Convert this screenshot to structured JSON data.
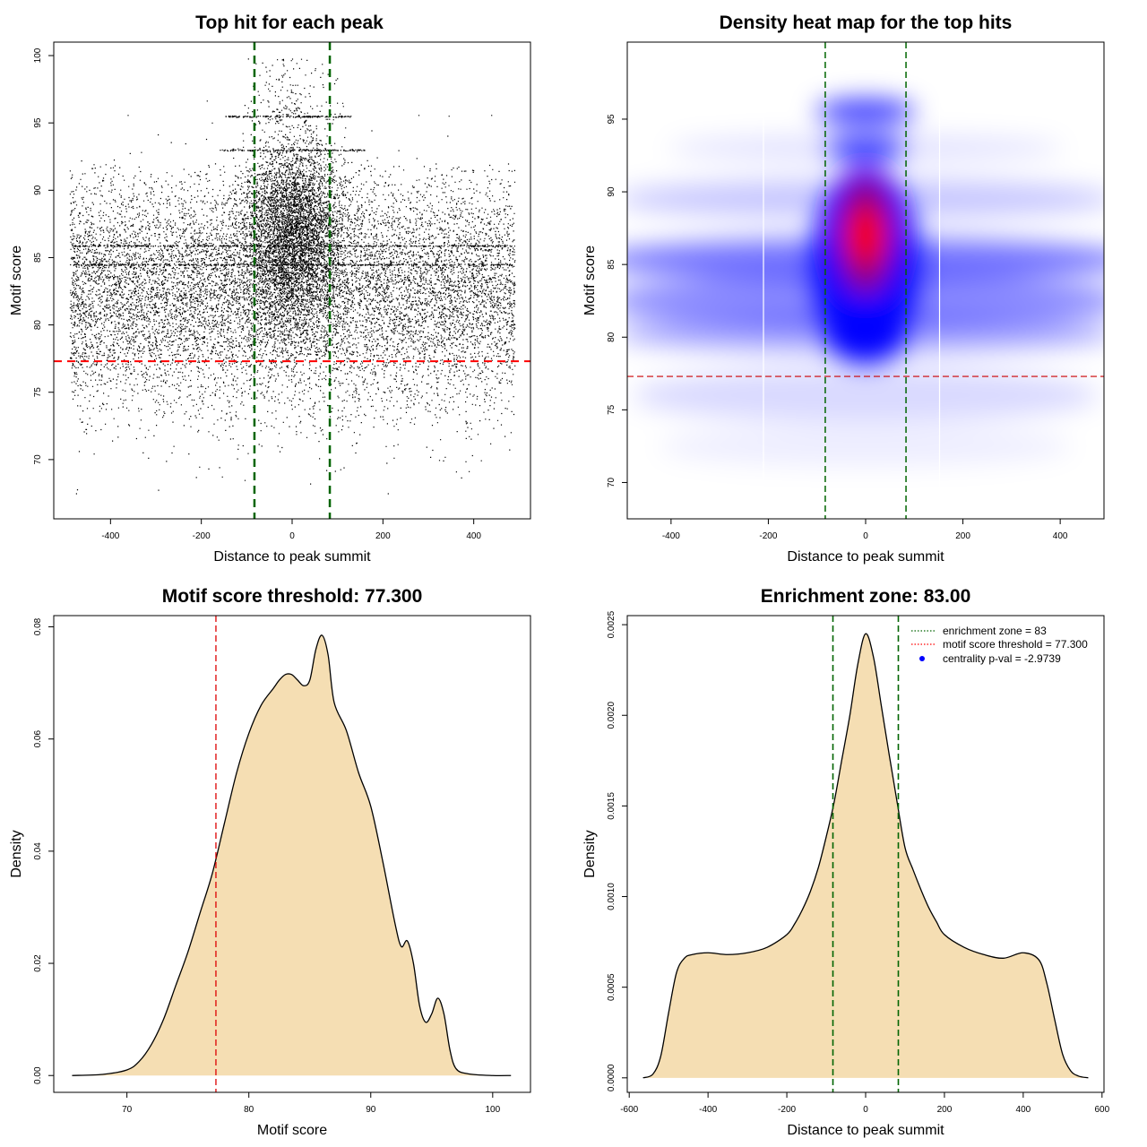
{
  "chart_data": [
    {
      "type": "scatter",
      "title": "Top hit for each peak",
      "xlabel": "Distance to peak summit",
      "ylabel": "Motif score",
      "xlim": [
        -525,
        525
      ],
      "ylim": [
        65.6,
        101
      ],
      "xticks": [
        -400,
        -200,
        0,
        200,
        400
      ],
      "yticks": [
        70,
        75,
        80,
        85,
        90,
        95,
        100
      ],
      "x_range": [
        -490,
        490
      ],
      "points_core_range": [
        68,
        95.5
      ],
      "dense_center": {
        "x": 0,
        "y": 87
      },
      "horizontal_bands": [
        {
          "y": 95.5,
          "x": [
            -150,
            130
          ]
        },
        {
          "y": 93.0,
          "x": [
            -160,
            160
          ]
        },
        {
          "y": 85.9,
          "x": [
            -490,
            490
          ]
        },
        {
          "y": 84.5,
          "x": [
            -490,
            490
          ]
        }
      ],
      "enrichment_zone_lines": [
        -83,
        83
      ],
      "threshold_line": 77.3
    },
    {
      "type": "heatmap",
      "title": "Density heat map for the top hits",
      "xlabel": "Distance to peak summit",
      "ylabel": "Motif score",
      "xlim": [
        -490,
        490
      ],
      "ylim": [
        67.5,
        100.3
      ],
      "xticks": [
        -400,
        -200,
        0,
        200,
        400
      ],
      "yticks": [
        70,
        75,
        80,
        85,
        90,
        95
      ],
      "peak": {
        "x": 0,
        "y": 87
      },
      "colors": [
        "#ffffff",
        "#0000ff",
        "#ff0000"
      ],
      "enrichment_zone_lines": [
        -83,
        83
      ],
      "threshold_line": 77.3
    },
    {
      "type": "area",
      "title": "Motif score threshold: 77.300",
      "xlabel": "Motif score",
      "ylabel": "Density",
      "xlim": [
        64.0,
        103.1
      ],
      "ylim": [
        -0.003,
        0.082
      ],
      "xticks": [
        70,
        80,
        90,
        100
      ],
      "yticks": [
        0.0,
        0.02,
        0.04,
        0.06,
        0.08
      ],
      "ytick_labels": [
        "0.00",
        "0.02",
        "0.04",
        "0.06",
        "0.08"
      ],
      "fill": "#f5deb3",
      "threshold_line": 77.3,
      "x": [
        65.5,
        68,
        70,
        71,
        72,
        73,
        74,
        75,
        76,
        77,
        78,
        79,
        80,
        81,
        82,
        82.5,
        83,
        83.5,
        84,
        84.5,
        85,
        85.5,
        86,
        86.5,
        87,
        88,
        89,
        90,
        91,
        92,
        92.5,
        93,
        93.5,
        94,
        94.5,
        95,
        95.5,
        96,
        96.5,
        97,
        98,
        100,
        101.5
      ],
      "y": [
        0.0,
        0.0002,
        0.001,
        0.0025,
        0.0055,
        0.01,
        0.016,
        0.022,
        0.029,
        0.036,
        0.045,
        0.054,
        0.061,
        0.066,
        0.069,
        0.0705,
        0.0715,
        0.0715,
        0.0705,
        0.0695,
        0.0705,
        0.076,
        0.0785,
        0.075,
        0.0665,
        0.0615,
        0.054,
        0.048,
        0.038,
        0.027,
        0.023,
        0.024,
        0.02,
        0.0125,
        0.0095,
        0.011,
        0.0138,
        0.011,
        0.0045,
        0.0012,
        0.0003,
        0.0,
        0.0
      ]
    },
    {
      "type": "area",
      "title": "Enrichment zone: 83.00",
      "xlabel": "Distance to peak summit",
      "ylabel": "Density",
      "xlim": [
        -605,
        605
      ],
      "ylim": [
        -8e-05,
        0.00255
      ],
      "xticks": [
        -600,
        -400,
        -200,
        0,
        200,
        400,
        600
      ],
      "yticks": [
        0.0,
        0.0005,
        0.001,
        0.0015,
        0.002,
        0.0025
      ],
      "ytick_labels": [
        "0.0000",
        "0.0005",
        "0.0010",
        "0.0015",
        "0.0020",
        "0.0025"
      ],
      "fill": "#f5deb3",
      "enrichment_zone_lines": [
        -83,
        83
      ],
      "x": [
        -565,
        -540,
        -520,
        -500,
        -480,
        -460,
        -440,
        -400,
        -350,
        -300,
        -250,
        -200,
        -180,
        -160,
        -140,
        -120,
        -100,
        -80,
        -60,
        -40,
        -20,
        0,
        20,
        40,
        60,
        80,
        100,
        120,
        140,
        160,
        180,
        200,
        250,
        300,
        350,
        400,
        440,
        460,
        480,
        500,
        520,
        540,
        565
      ],
      "y": [
        0.0,
        2e-05,
        0.00012,
        0.00036,
        0.00058,
        0.00066,
        0.00068,
        0.00069,
        0.00068,
        0.00069,
        0.00072,
        0.00079,
        0.00085,
        0.00093,
        0.00103,
        0.00116,
        0.00133,
        0.00152,
        0.00176,
        0.002,
        0.00228,
        0.00245,
        0.00232,
        0.00205,
        0.00178,
        0.00152,
        0.00127,
        0.00115,
        0.00104,
        0.00094,
        0.00086,
        0.00079,
        0.00072,
        0.00068,
        0.00066,
        0.00069,
        0.00065,
        0.00052,
        0.00032,
        0.00013,
        4e-05,
        1e-05,
        0.0
      ],
      "legend": [
        {
          "label": "enrichment zone = 83",
          "color": "#006400",
          "style": "dotted-line"
        },
        {
          "label": "motif score threshold = 77.300",
          "color": "#ff0000",
          "style": "dotted-line"
        },
        {
          "label": "centrality p-val = -2.9739",
          "color": "#0000ff",
          "style": "point"
        }
      ],
      "legend_position": "top-right"
    }
  ]
}
